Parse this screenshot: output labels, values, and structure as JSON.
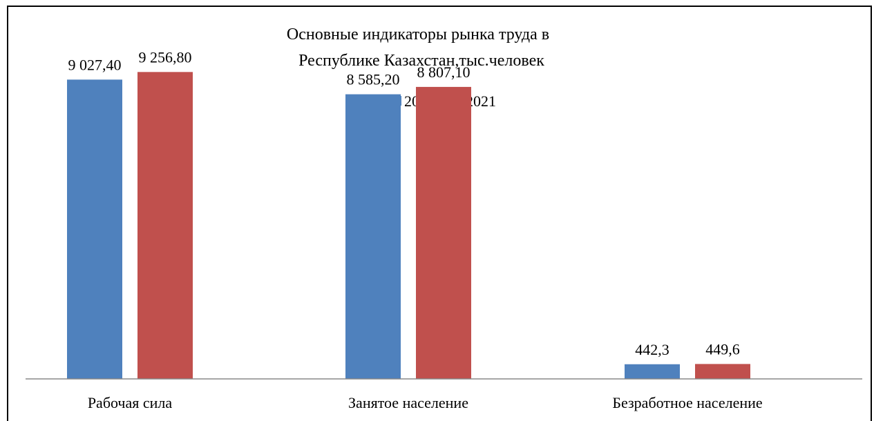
{
  "chart_data": {
    "type": "bar",
    "title_lines": [
      "Основные индикаторы рынка труда в",
      "Республике Казахстан,тыс.человек"
    ],
    "categories": [
      "Рабочая сила",
      "Занятое население",
      "Безработное население"
    ],
    "series": [
      {
        "name": "2017",
        "color": "#4F81BD",
        "values": [
          9027.4,
          8585.2,
          442.3
        ],
        "labels": [
          "9 027,40",
          "8 585,20",
          "442,3"
        ]
      },
      {
        "name": "2021",
        "color": "#C0504D",
        "values": [
          9256.8,
          8807.1,
          449.6
        ],
        "labels": [
          "9 256,80",
          "8 807,10",
          "449,6"
        ]
      }
    ],
    "ylim": [
      0,
      10700
    ],
    "grid": false,
    "legend_position": "top-center"
  }
}
